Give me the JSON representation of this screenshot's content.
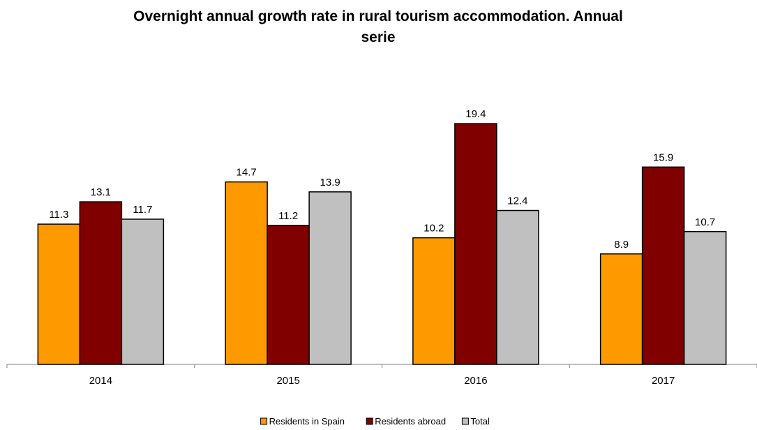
{
  "chart_data": {
    "type": "bar",
    "title_lines": [
      "Overnight annual growth rate in rural tourism accommodation. Annual",
      "serie"
    ],
    "categories": [
      "2014",
      "2015",
      "2016",
      "2017"
    ],
    "series": [
      {
        "name": "Residents in Spain",
        "color": "#ff9900",
        "values": [
          11.3,
          14.7,
          10.2,
          8.9
        ]
      },
      {
        "name": "Residents abroad",
        "color": "#800000",
        "values": [
          13.1,
          11.2,
          19.4,
          15.9
        ]
      },
      {
        "name": "Total",
        "color": "#c0c0c0",
        "values": [
          11.7,
          13.9,
          12.4,
          10.7
        ]
      }
    ],
    "ylim": [
      0,
      23
    ],
    "grid": false,
    "legend_position": "bottom"
  }
}
